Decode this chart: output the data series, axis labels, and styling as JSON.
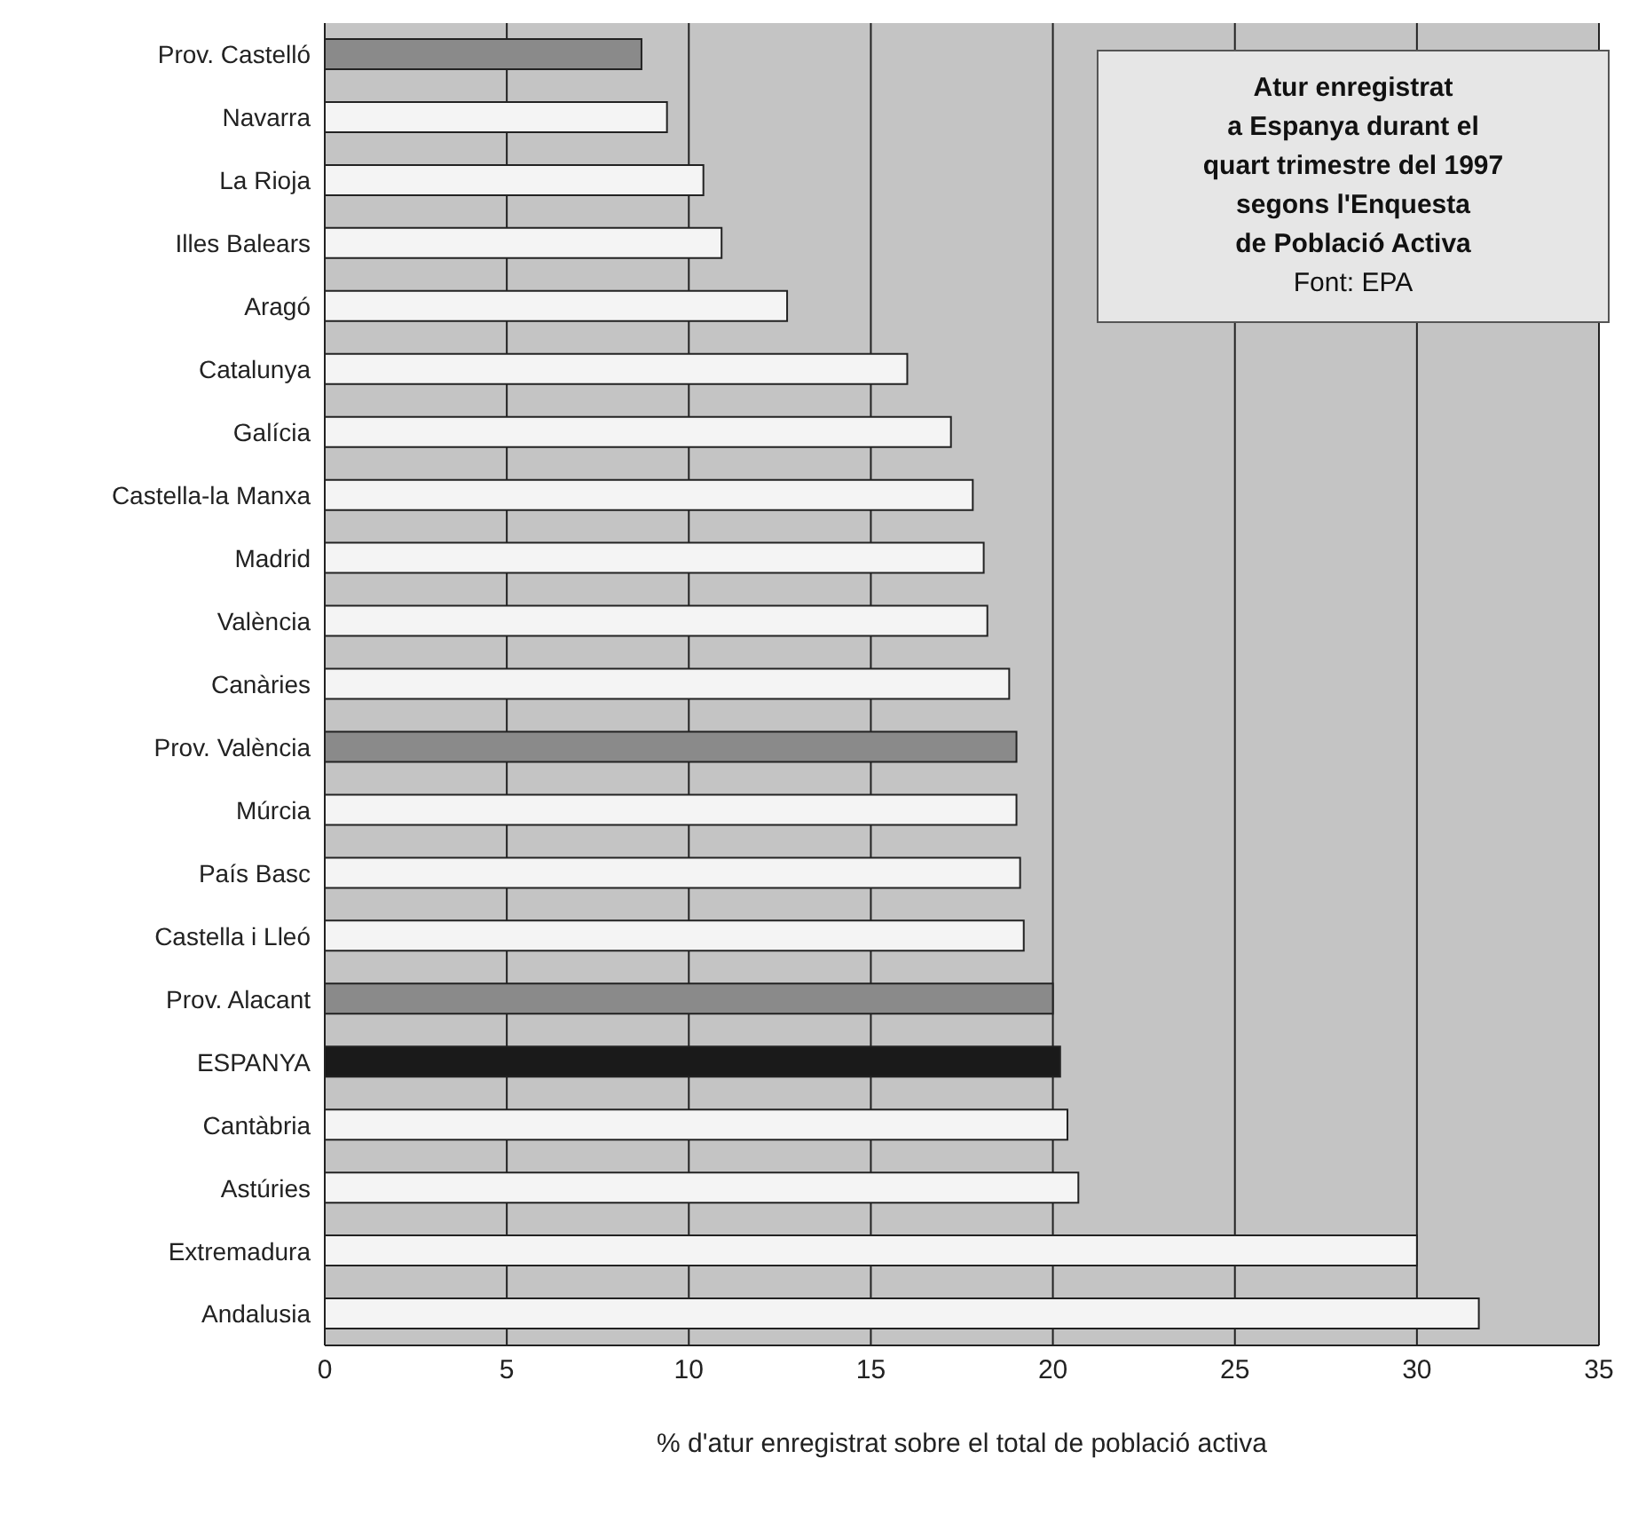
{
  "chart_data": {
    "type": "bar",
    "orientation": "horizontal",
    "title": "Atur enregistrat\na Espanya durant el\nquart trimestre del 1997\nsegons l'Enquesta\nde Població Activa",
    "annotations": [
      "Font: EPA"
    ],
    "xlabel": "% d'atur enregistrat sobre el total de població activa",
    "categories": [
      "Prov. Castelló",
      "Navarra",
      "La Rioja",
      "Illes Balears",
      "Aragó",
      "Catalunya",
      "Galícia",
      "Castella-la Manxa",
      "Madrid",
      "València",
      "Canàries",
      "Prov. València",
      "Múrcia",
      "País Basc",
      "Castella i Lleó",
      "Prov. Alacant",
      "ESPANYA",
      "Cantàbria",
      "Astúries",
      "Extremadura",
      "Andalusia"
    ],
    "values": [
      8.7,
      9.4,
      10.4,
      10.9,
      12.7,
      16.0,
      17.2,
      17.8,
      18.1,
      18.2,
      18.8,
      19.0,
      19.0,
      19.1,
      19.2,
      20.0,
      20.2,
      20.4,
      20.7,
      30.0,
      31.7
    ],
    "colors": [
      "#8a8a8a",
      "#f4f4f4",
      "#f4f4f4",
      "#f4f4f4",
      "#f4f4f4",
      "#f4f4f4",
      "#f4f4f4",
      "#f4f4f4",
      "#f4f4f4",
      "#f4f4f4",
      "#f4f4f4",
      "#8a8a8a",
      "#f4f4f4",
      "#f4f4f4",
      "#f4f4f4",
      "#8a8a8a",
      "#1a1a1a",
      "#f4f4f4",
      "#f4f4f4",
      "#f4f4f4",
      "#f4f4f4"
    ],
    "xlim": [
      0,
      35
    ],
    "xticks": [
      0,
      5,
      10,
      15,
      20,
      25,
      30,
      35
    ],
    "grid": "x"
  }
}
